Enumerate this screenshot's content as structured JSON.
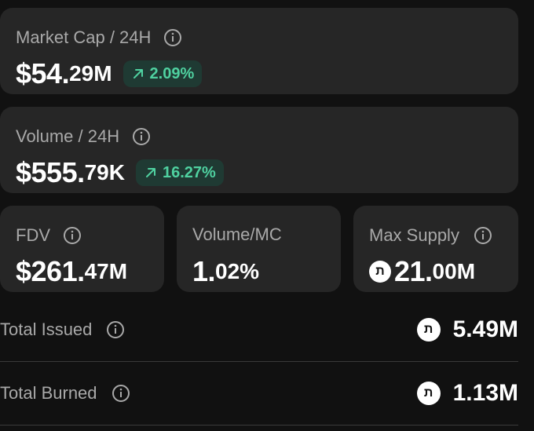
{
  "market_cap": {
    "label": "Market Cap / 24H",
    "value_main": "$54.",
    "value_dec": "29M",
    "change": "2.09%"
  },
  "volume": {
    "label": "Volume / 24H",
    "value_main": "$555.",
    "value_dec": "79K",
    "change": "16.27%"
  },
  "fdv": {
    "label": "FDV",
    "value_main": "$261.",
    "value_dec": "47M"
  },
  "volume_mc": {
    "label": "Volume/MC",
    "value_main": "1.",
    "value_dec": "02%"
  },
  "max_supply": {
    "label": "Max Supply",
    "token_symbol": "ת",
    "value_main": "21.",
    "value_dec": "00M"
  },
  "total_issued": {
    "label": "Total Issued",
    "token_symbol": "ת",
    "value": "5.49M"
  },
  "total_burned": {
    "label": "Total Burned",
    "token_symbol": "ת",
    "value": "1.13M"
  },
  "colors": {
    "background": "#111111",
    "card": "#262626",
    "positive": "#4fd1a0",
    "badge_bg": "#1f3a33",
    "muted_text": "#a9a9a9"
  },
  "icons": {
    "info": "info-icon",
    "arrow": "arrow-up-right-icon",
    "token": "token-icon"
  }
}
